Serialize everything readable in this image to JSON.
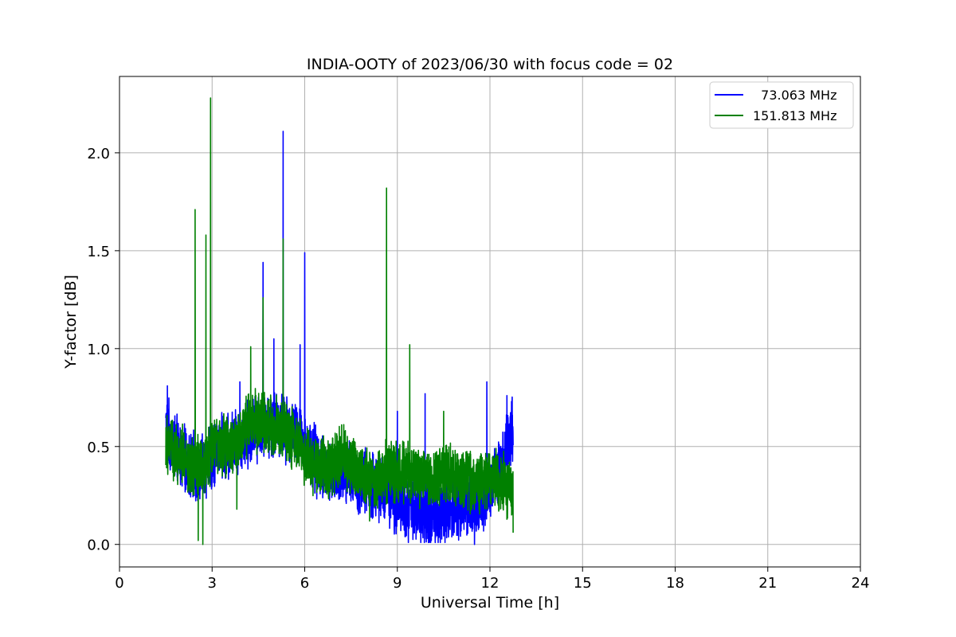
{
  "chart_data": {
    "type": "line",
    "title": "INDIA-OOTY of 2023/06/30 with focus code = 02",
    "xlabel": "Universal Time [h]",
    "ylabel": "Y-factor [dB]",
    "xlim": [
      0,
      24
    ],
    "ylim": [
      -0.115,
      2.39
    ],
    "xticks": [
      0,
      3,
      6,
      9,
      12,
      15,
      18,
      21,
      24
    ],
    "xtick_labels": [
      "0",
      "3",
      "6",
      "9",
      "12",
      "15",
      "18",
      "21",
      "24"
    ],
    "yticks": [
      0.0,
      0.5,
      1.0,
      1.5,
      2.0
    ],
    "ytick_labels": [
      "0.0",
      "0.5",
      "1.0",
      "1.5",
      "2.0"
    ],
    "grid": true,
    "legend_position": "top-right",
    "series": [
      {
        "name": "  73.063 MHz",
        "color": "#0000ff",
        "x": [
          1.5,
          1.75,
          2.0,
          2.25,
          2.5,
          2.75,
          3.0,
          3.25,
          3.5,
          3.75,
          4.0,
          4.25,
          4.5,
          4.75,
          5.0,
          5.25,
          5.5,
          5.75,
          6.0,
          6.25,
          6.5,
          6.75,
          7.0,
          7.25,
          7.5,
          7.75,
          8.0,
          8.25,
          8.5,
          8.75,
          9.0,
          9.25,
          9.5,
          9.75,
          10.0,
          10.25,
          10.5,
          10.75,
          11.0,
          11.25,
          11.5,
          11.75,
          12.0,
          12.25,
          12.5,
          12.75
        ],
        "y": [
          0.6,
          0.5,
          0.45,
          0.4,
          0.38,
          0.4,
          0.45,
          0.5,
          0.48,
          0.52,
          0.55,
          0.58,
          0.6,
          0.62,
          0.62,
          0.6,
          0.58,
          0.55,
          0.5,
          0.45,
          0.4,
          0.38,
          0.36,
          0.35,
          0.35,
          0.33,
          0.32,
          0.3,
          0.28,
          0.26,
          0.22,
          0.2,
          0.18,
          0.17,
          0.16,
          0.16,
          0.17,
          0.18,
          0.2,
          0.21,
          0.22,
          0.24,
          0.28,
          0.35,
          0.45,
          0.6
        ],
        "spikes": [
          [
            1.55,
            0.81
          ],
          [
            3.9,
            0.83
          ],
          [
            4.65,
            1.44
          ],
          [
            5.0,
            1.05
          ],
          [
            5.3,
            2.11
          ],
          [
            5.85,
            1.02
          ],
          [
            6.0,
            1.49
          ],
          [
            9.0,
            0.68
          ],
          [
            9.9,
            0.77
          ],
          [
            11.9,
            0.83
          ],
          [
            12.55,
            0.76
          ],
          [
            12.7,
            0.73
          ]
        ],
        "dips": [
          [
            10.1,
            0.02
          ],
          [
            11.5,
            0.0
          ],
          [
            12.65,
            0.43
          ]
        ]
      },
      {
        "name": "151.813 MHz",
        "color": "#008000",
        "x": [
          1.5,
          1.75,
          2.0,
          2.25,
          2.5,
          2.75,
          3.0,
          3.25,
          3.5,
          3.75,
          4.0,
          4.25,
          4.5,
          4.75,
          5.0,
          5.25,
          5.5,
          5.75,
          6.0,
          6.25,
          6.5,
          6.75,
          7.0,
          7.25,
          7.5,
          7.75,
          8.0,
          8.25,
          8.5,
          8.75,
          9.0,
          9.25,
          9.5,
          9.75,
          10.0,
          10.25,
          10.5,
          10.75,
          11.0,
          11.25,
          11.5,
          11.75,
          12.0,
          12.25,
          12.5,
          12.75
        ],
        "y": [
          0.55,
          0.48,
          0.45,
          0.42,
          0.4,
          0.42,
          0.48,
          0.5,
          0.5,
          0.52,
          0.58,
          0.65,
          0.62,
          0.62,
          0.6,
          0.6,
          0.56,
          0.52,
          0.46,
          0.42,
          0.4,
          0.38,
          0.42,
          0.45,
          0.4,
          0.38,
          0.35,
          0.33,
          0.35,
          0.38,
          0.36,
          0.38,
          0.36,
          0.35,
          0.34,
          0.33,
          0.35,
          0.36,
          0.35,
          0.33,
          0.32,
          0.32,
          0.34,
          0.32,
          0.3,
          0.25
        ],
        "spikes": [
          [
            2.45,
            1.71
          ],
          [
            2.8,
            1.58
          ],
          [
            2.95,
            2.28
          ],
          [
            4.25,
            1.01
          ],
          [
            4.65,
            1.26
          ],
          [
            5.3,
            1.56
          ],
          [
            8.65,
            1.82
          ],
          [
            9.4,
            1.02
          ],
          [
            10.5,
            0.68
          ]
        ],
        "dips": [
          [
            2.55,
            0.02
          ],
          [
            2.7,
            0.0
          ],
          [
            3.8,
            0.18
          ],
          [
            8.1,
            0.12
          ],
          [
            12.75,
            0.06
          ]
        ]
      }
    ]
  }
}
